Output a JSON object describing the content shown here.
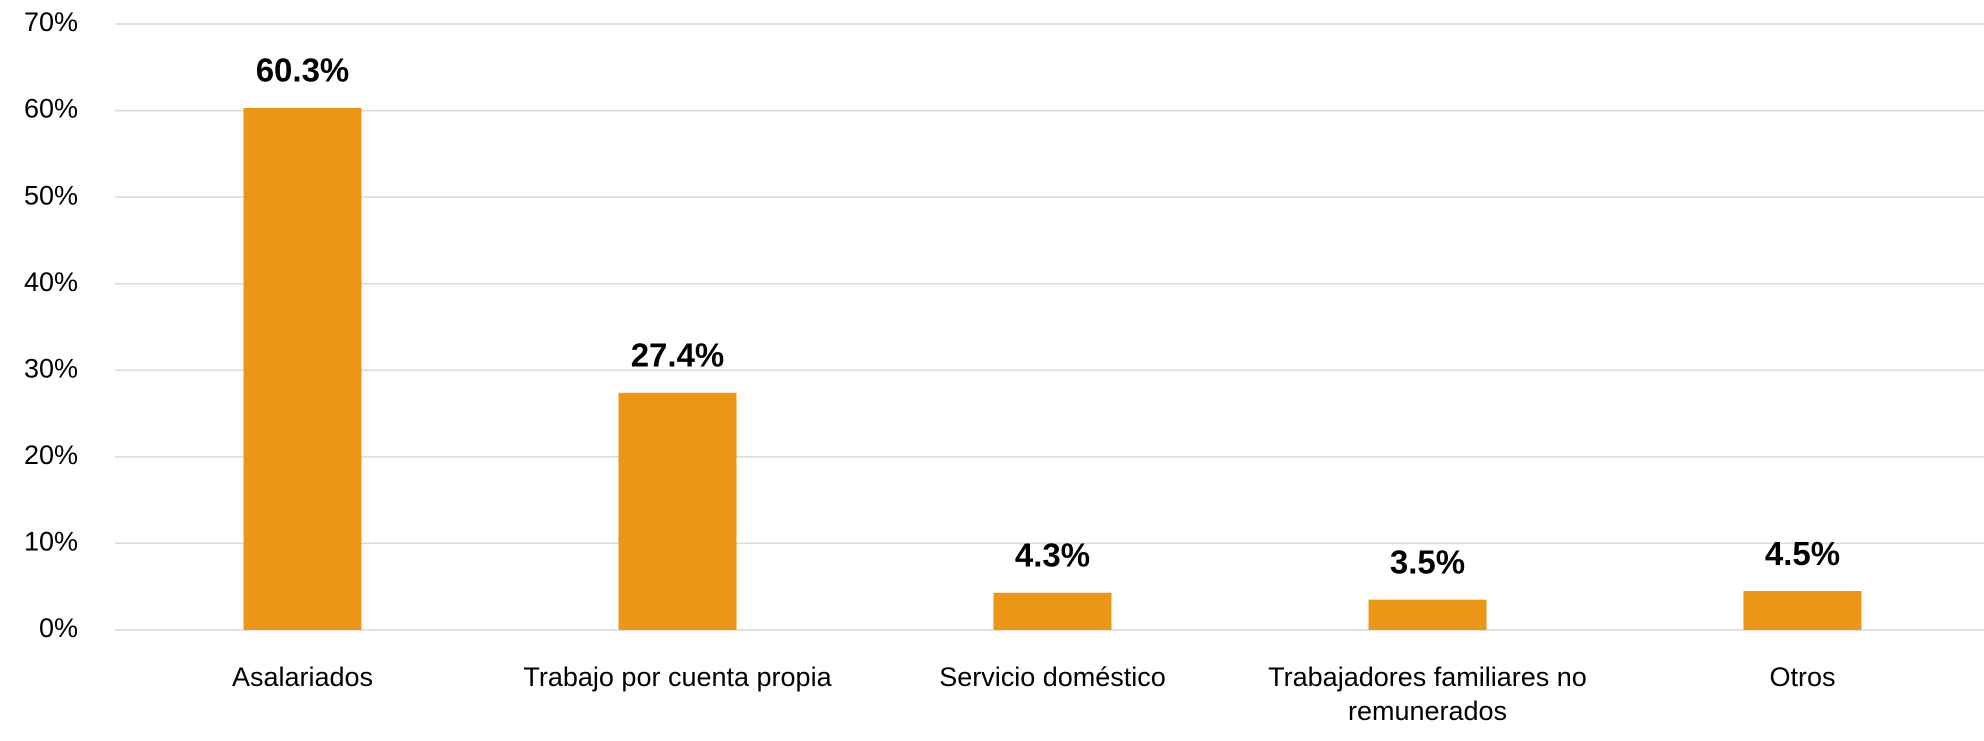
{
  "chart_data": {
    "type": "bar",
    "categories": [
      "Asalariados",
      "Trabajo por cuenta propia",
      "Servicio doméstico",
      "Trabajadores familiares no remunerados",
      "Otros"
    ],
    "values": [
      60.3,
      27.4,
      4.3,
      3.5,
      4.5
    ],
    "value_labels": [
      "60.3%",
      "27.4%",
      "4.3%",
      "3.5%",
      "4.5%"
    ],
    "color": "#eb9617",
    "ylim": [
      0,
      70
    ],
    "yticks": [
      {
        "value": 0,
        "label": "0%"
      },
      {
        "value": 10,
        "label": "10%"
      },
      {
        "value": 20,
        "label": "20%"
      },
      {
        "value": 30,
        "label": "30%"
      },
      {
        "value": 40,
        "label": "40%"
      },
      {
        "value": 50,
        "label": "50%"
      },
      {
        "value": 60,
        "label": "60%"
      },
      {
        "value": 70,
        "label": "70%"
      }
    ],
    "grid": true
  }
}
